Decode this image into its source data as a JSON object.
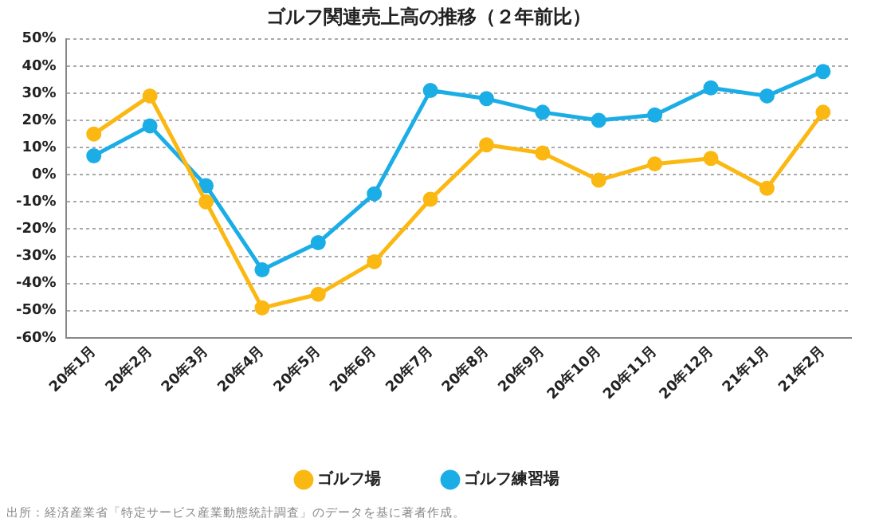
{
  "chart_data": {
    "type": "line",
    "title": "ゴルフ関連売上高の推移（２年前比）",
    "categories": [
      "20年1月",
      "20年2月",
      "20年3月",
      "20年4月",
      "20年5月",
      "20年6月",
      "20年7月",
      "20年8月",
      "20年9月",
      "20年10月",
      "20年11月",
      "20年12月",
      "21年1月",
      "21年2月"
    ],
    "series": [
      {
        "name": "ゴルフ場",
        "color": "#fbb812",
        "values": [
          15,
          29,
          -10,
          -49,
          -44,
          -32,
          -9,
          11,
          8,
          -2,
          4,
          6,
          -5,
          23
        ]
      },
      {
        "name": "ゴルフ練習場",
        "color": "#1aade6",
        "values": [
          7,
          18,
          -4,
          -35,
          -25,
          -7,
          31,
          28,
          23,
          20,
          22,
          32,
          29,
          38
        ]
      }
    ],
    "ylim": [
      -60,
      50
    ],
    "yticks": [
      {
        "value": -60,
        "label": "-60%"
      },
      {
        "value": -50,
        "label": "-50%"
      },
      {
        "value": -40,
        "label": "-40%"
      },
      {
        "value": -30,
        "label": "-30%"
      },
      {
        "value": -20,
        "label": "-20%"
      },
      {
        "value": -10,
        "label": "-10%"
      },
      {
        "value": 0,
        "label": "0%"
      },
      {
        "value": 10,
        "label": "10%"
      },
      {
        "value": 20,
        "label": "20%"
      },
      {
        "value": 30,
        "label": "30%"
      },
      {
        "value": 40,
        "label": "40%"
      },
      {
        "value": 50,
        "label": "50%"
      }
    ],
    "grid": "y",
    "legend": "bottom",
    "marker": "circle",
    "line_style": "solid",
    "annotations": [
      "出所：経済産業省「特定サービス産業動態統計調査」のデータを基に著者作成。"
    ]
  }
}
